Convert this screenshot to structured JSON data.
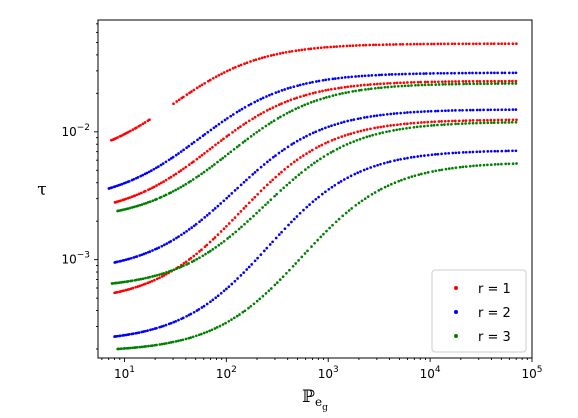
{
  "chart_data": {
    "type": "scatter",
    "xscale": "log",
    "yscale": "log",
    "xlim": [
      5.5,
      100000
    ],
    "ylim": [
      0.00017,
      0.075
    ],
    "grid": false,
    "legend_position": "bottom-right",
    "ylabel": "τ",
    "xlabel_main": "ℙ",
    "xlabel_sub": "e",
    "xlabel_subsub": "g",
    "x_ticks": [
      {
        "value": 10,
        "base": "10",
        "exp": "1"
      },
      {
        "value": 100,
        "base": "10",
        "exp": "2"
      },
      {
        "value": 1000,
        "base": "10",
        "exp": "3"
      },
      {
        "value": 10000,
        "base": "10",
        "exp": "4"
      },
      {
        "value": 100000,
        "base": "10",
        "exp": "5"
      }
    ],
    "y_ticks": [
      {
        "value": 0.001,
        "base": "10",
        "exp": "−3"
      },
      {
        "value": 0.01,
        "base": "10",
        "exp": "−2"
      }
    ],
    "series": [
      {
        "name": "r = 1",
        "color": "#ff0000",
        "curves": [
          {
            "xmin": 7.5,
            "xmax": 70000,
            "ymin": 0.0086,
            "ymax": 0.049,
            "xc": 30,
            "gap": [
              18,
              30
            ]
          },
          {
            "xmin": 8,
            "xmax": 70000,
            "ymin": 0.0028,
            "ymax": 0.025,
            "xc": 70
          },
          {
            "xmin": 8,
            "xmax": 70000,
            "ymin": 0.00055,
            "ymax": 0.0125,
            "xc": 140
          }
        ]
      },
      {
        "name": "r = 2",
        "color": "#0000ff",
        "curves": [
          {
            "xmin": 7,
            "xmax": 70000,
            "ymin": 0.0036,
            "ymax": 0.029,
            "xc": 55
          },
          {
            "xmin": 8,
            "xmax": 70000,
            "ymin": 0.00095,
            "ymax": 0.015,
            "xc": 120
          },
          {
            "xmin": 8,
            "xmax": 70000,
            "ymin": 0.00025,
            "ymax": 0.0072,
            "xc": 260
          }
        ]
      },
      {
        "name": "r = 3",
        "color": "#008000",
        "curves": [
          {
            "xmin": 8.5,
            "xmax": 70000,
            "ymin": 0.0024,
            "ymax": 0.024,
            "xc": 110
          },
          {
            "xmin": 7.5,
            "xmax": 70000,
            "ymin": 0.00065,
            "ymax": 0.012,
            "xc": 240
          },
          {
            "xmin": 8.5,
            "xmax": 70000,
            "ymin": 0.0002,
            "ymax": 0.0058,
            "xc": 550
          }
        ]
      }
    ]
  }
}
